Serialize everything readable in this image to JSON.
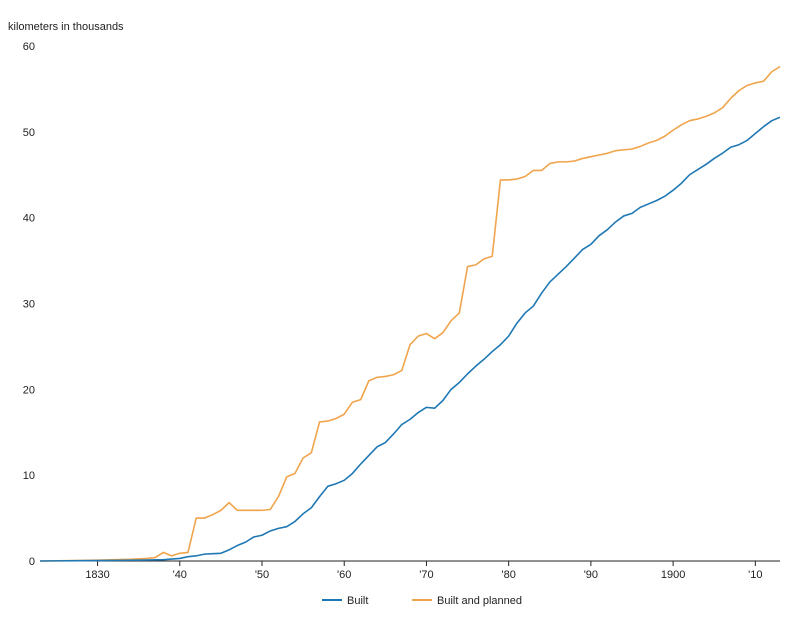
{
  "chart_data": {
    "type": "line",
    "ylabel": "kilometers in thousands",
    "xlim": [
      1823,
      1913
    ],
    "ylim": [
      0,
      60
    ],
    "grid": false,
    "legend_position": "bottom-center",
    "x_ticks": [
      1830,
      1840,
      1850,
      1860,
      1870,
      1880,
      1890,
      1900,
      1910
    ],
    "x_tick_labels": [
      "1830",
      "'40",
      "'50",
      "'60",
      "'70",
      "'80",
      "'90",
      "1900",
      "'10"
    ],
    "y_ticks": [
      0,
      10,
      20,
      30,
      40,
      50,
      60
    ],
    "y_tick_labels": [
      "0",
      "10",
      "20",
      "30",
      "40",
      "50",
      "60"
    ],
    "series": [
      {
        "name": "Built",
        "color": "#1f78b4",
        "points": [
          [
            1823,
            0
          ],
          [
            1830,
            0.05
          ],
          [
            1835,
            0.1
          ],
          [
            1838,
            0.15
          ],
          [
            1840,
            0.3
          ],
          [
            1841,
            0.5
          ],
          [
            1842,
            0.6
          ],
          [
            1843,
            0.8
          ],
          [
            1844,
            0.85
          ],
          [
            1845,
            0.9
          ],
          [
            1846,
            1.3
          ],
          [
            1847,
            1.8
          ],
          [
            1848,
            2.2
          ],
          [
            1849,
            2.8
          ],
          [
            1850,
            3.0
          ],
          [
            1851,
            3.5
          ],
          [
            1852,
            3.8
          ],
          [
            1853,
            4.0
          ],
          [
            1854,
            4.6
          ],
          [
            1855,
            5.5
          ],
          [
            1856,
            6.2
          ],
          [
            1857,
            7.5
          ],
          [
            1858,
            8.7
          ],
          [
            1859,
            9.0
          ],
          [
            1860,
            9.4
          ],
          [
            1861,
            10.2
          ],
          [
            1862,
            11.3
          ],
          [
            1863,
            12.3
          ],
          [
            1864,
            13.3
          ],
          [
            1865,
            13.8
          ],
          [
            1866,
            14.8
          ],
          [
            1867,
            15.9
          ],
          [
            1868,
            16.5
          ],
          [
            1869,
            17.3
          ],
          [
            1870,
            17.9
          ],
          [
            1871,
            17.8
          ],
          [
            1872,
            18.7
          ],
          [
            1873,
            20.0
          ],
          [
            1874,
            20.8
          ],
          [
            1875,
            21.8
          ],
          [
            1876,
            22.7
          ],
          [
            1877,
            23.5
          ],
          [
            1878,
            24.4
          ],
          [
            1879,
            25.2
          ],
          [
            1880,
            26.2
          ],
          [
            1881,
            27.7
          ],
          [
            1882,
            28.9
          ],
          [
            1883,
            29.7
          ],
          [
            1884,
            31.2
          ],
          [
            1885,
            32.5
          ],
          [
            1886,
            33.4
          ],
          [
            1887,
            34.3
          ],
          [
            1888,
            35.3
          ],
          [
            1889,
            36.3
          ],
          [
            1890,
            36.9
          ],
          [
            1891,
            37.9
          ],
          [
            1892,
            38.6
          ],
          [
            1893,
            39.5
          ],
          [
            1894,
            40.2
          ],
          [
            1895,
            40.5
          ],
          [
            1896,
            41.2
          ],
          [
            1897,
            41.6
          ],
          [
            1898,
            42.0
          ],
          [
            1899,
            42.5
          ],
          [
            1900,
            43.2
          ],
          [
            1901,
            44.0
          ],
          [
            1902,
            45.0
          ],
          [
            1903,
            45.6
          ],
          [
            1904,
            46.2
          ],
          [
            1905,
            46.9
          ],
          [
            1906,
            47.5
          ],
          [
            1907,
            48.2
          ],
          [
            1908,
            48.5
          ],
          [
            1909,
            49.0
          ],
          [
            1910,
            49.8
          ],
          [
            1911,
            50.6
          ],
          [
            1912,
            51.3
          ],
          [
            1913,
            51.7
          ]
        ]
      },
      {
        "name": "Built and planned",
        "color": "#f0a44c",
        "points": [
          [
            1823,
            0
          ],
          [
            1830,
            0.1
          ],
          [
            1834,
            0.2
          ],
          [
            1836,
            0.3
          ],
          [
            1837,
            0.4
          ],
          [
            1838,
            1.0
          ],
          [
            1839,
            0.6
          ],
          [
            1840,
            0.9
          ],
          [
            1841,
            1.0
          ],
          [
            1842,
            5.0
          ],
          [
            1843,
            5.0
          ],
          [
            1844,
            5.4
          ],
          [
            1845,
            5.9
          ],
          [
            1846,
            6.8
          ],
          [
            1847,
            5.9
          ],
          [
            1848,
            5.9
          ],
          [
            1849,
            5.9
          ],
          [
            1850,
            5.9
          ],
          [
            1851,
            6.0
          ],
          [
            1852,
            7.5
          ],
          [
            1853,
            9.8
          ],
          [
            1854,
            10.2
          ],
          [
            1855,
            12.0
          ],
          [
            1856,
            12.6
          ],
          [
            1857,
            16.2
          ],
          [
            1858,
            16.3
          ],
          [
            1859,
            16.6
          ],
          [
            1860,
            17.1
          ],
          [
            1861,
            18.5
          ],
          [
            1862,
            18.8
          ],
          [
            1863,
            21.0
          ],
          [
            1864,
            21.4
          ],
          [
            1865,
            21.5
          ],
          [
            1866,
            21.7
          ],
          [
            1867,
            22.2
          ],
          [
            1868,
            25.2
          ],
          [
            1869,
            26.2
          ],
          [
            1870,
            26.5
          ],
          [
            1871,
            25.9
          ],
          [
            1872,
            26.6
          ],
          [
            1873,
            28.0
          ],
          [
            1874,
            28.9
          ],
          [
            1875,
            34.3
          ],
          [
            1876,
            34.5
          ],
          [
            1877,
            35.2
          ],
          [
            1878,
            35.5
          ],
          [
            1879,
            44.4
          ],
          [
            1880,
            44.4
          ],
          [
            1881,
            44.5
          ],
          [
            1882,
            44.8
          ],
          [
            1883,
            45.5
          ],
          [
            1884,
            45.5
          ],
          [
            1885,
            46.3
          ],
          [
            1886,
            46.5
          ],
          [
            1887,
            46.5
          ],
          [
            1888,
            46.6
          ],
          [
            1889,
            46.9
          ],
          [
            1890,
            47.1
          ],
          [
            1891,
            47.3
          ],
          [
            1892,
            47.5
          ],
          [
            1893,
            47.8
          ],
          [
            1894,
            47.9
          ],
          [
            1895,
            48.0
          ],
          [
            1896,
            48.3
          ],
          [
            1897,
            48.7
          ],
          [
            1898,
            49.0
          ],
          [
            1899,
            49.5
          ],
          [
            1900,
            50.2
          ],
          [
            1901,
            50.8
          ],
          [
            1902,
            51.3
          ],
          [
            1903,
            51.5
          ],
          [
            1904,
            51.8
          ],
          [
            1905,
            52.2
          ],
          [
            1906,
            52.8
          ],
          [
            1907,
            53.9
          ],
          [
            1908,
            54.8
          ],
          [
            1909,
            55.4
          ],
          [
            1910,
            55.7
          ],
          [
            1911,
            55.9
          ],
          [
            1912,
            57.0
          ],
          [
            1913,
            57.6
          ]
        ]
      }
    ]
  }
}
